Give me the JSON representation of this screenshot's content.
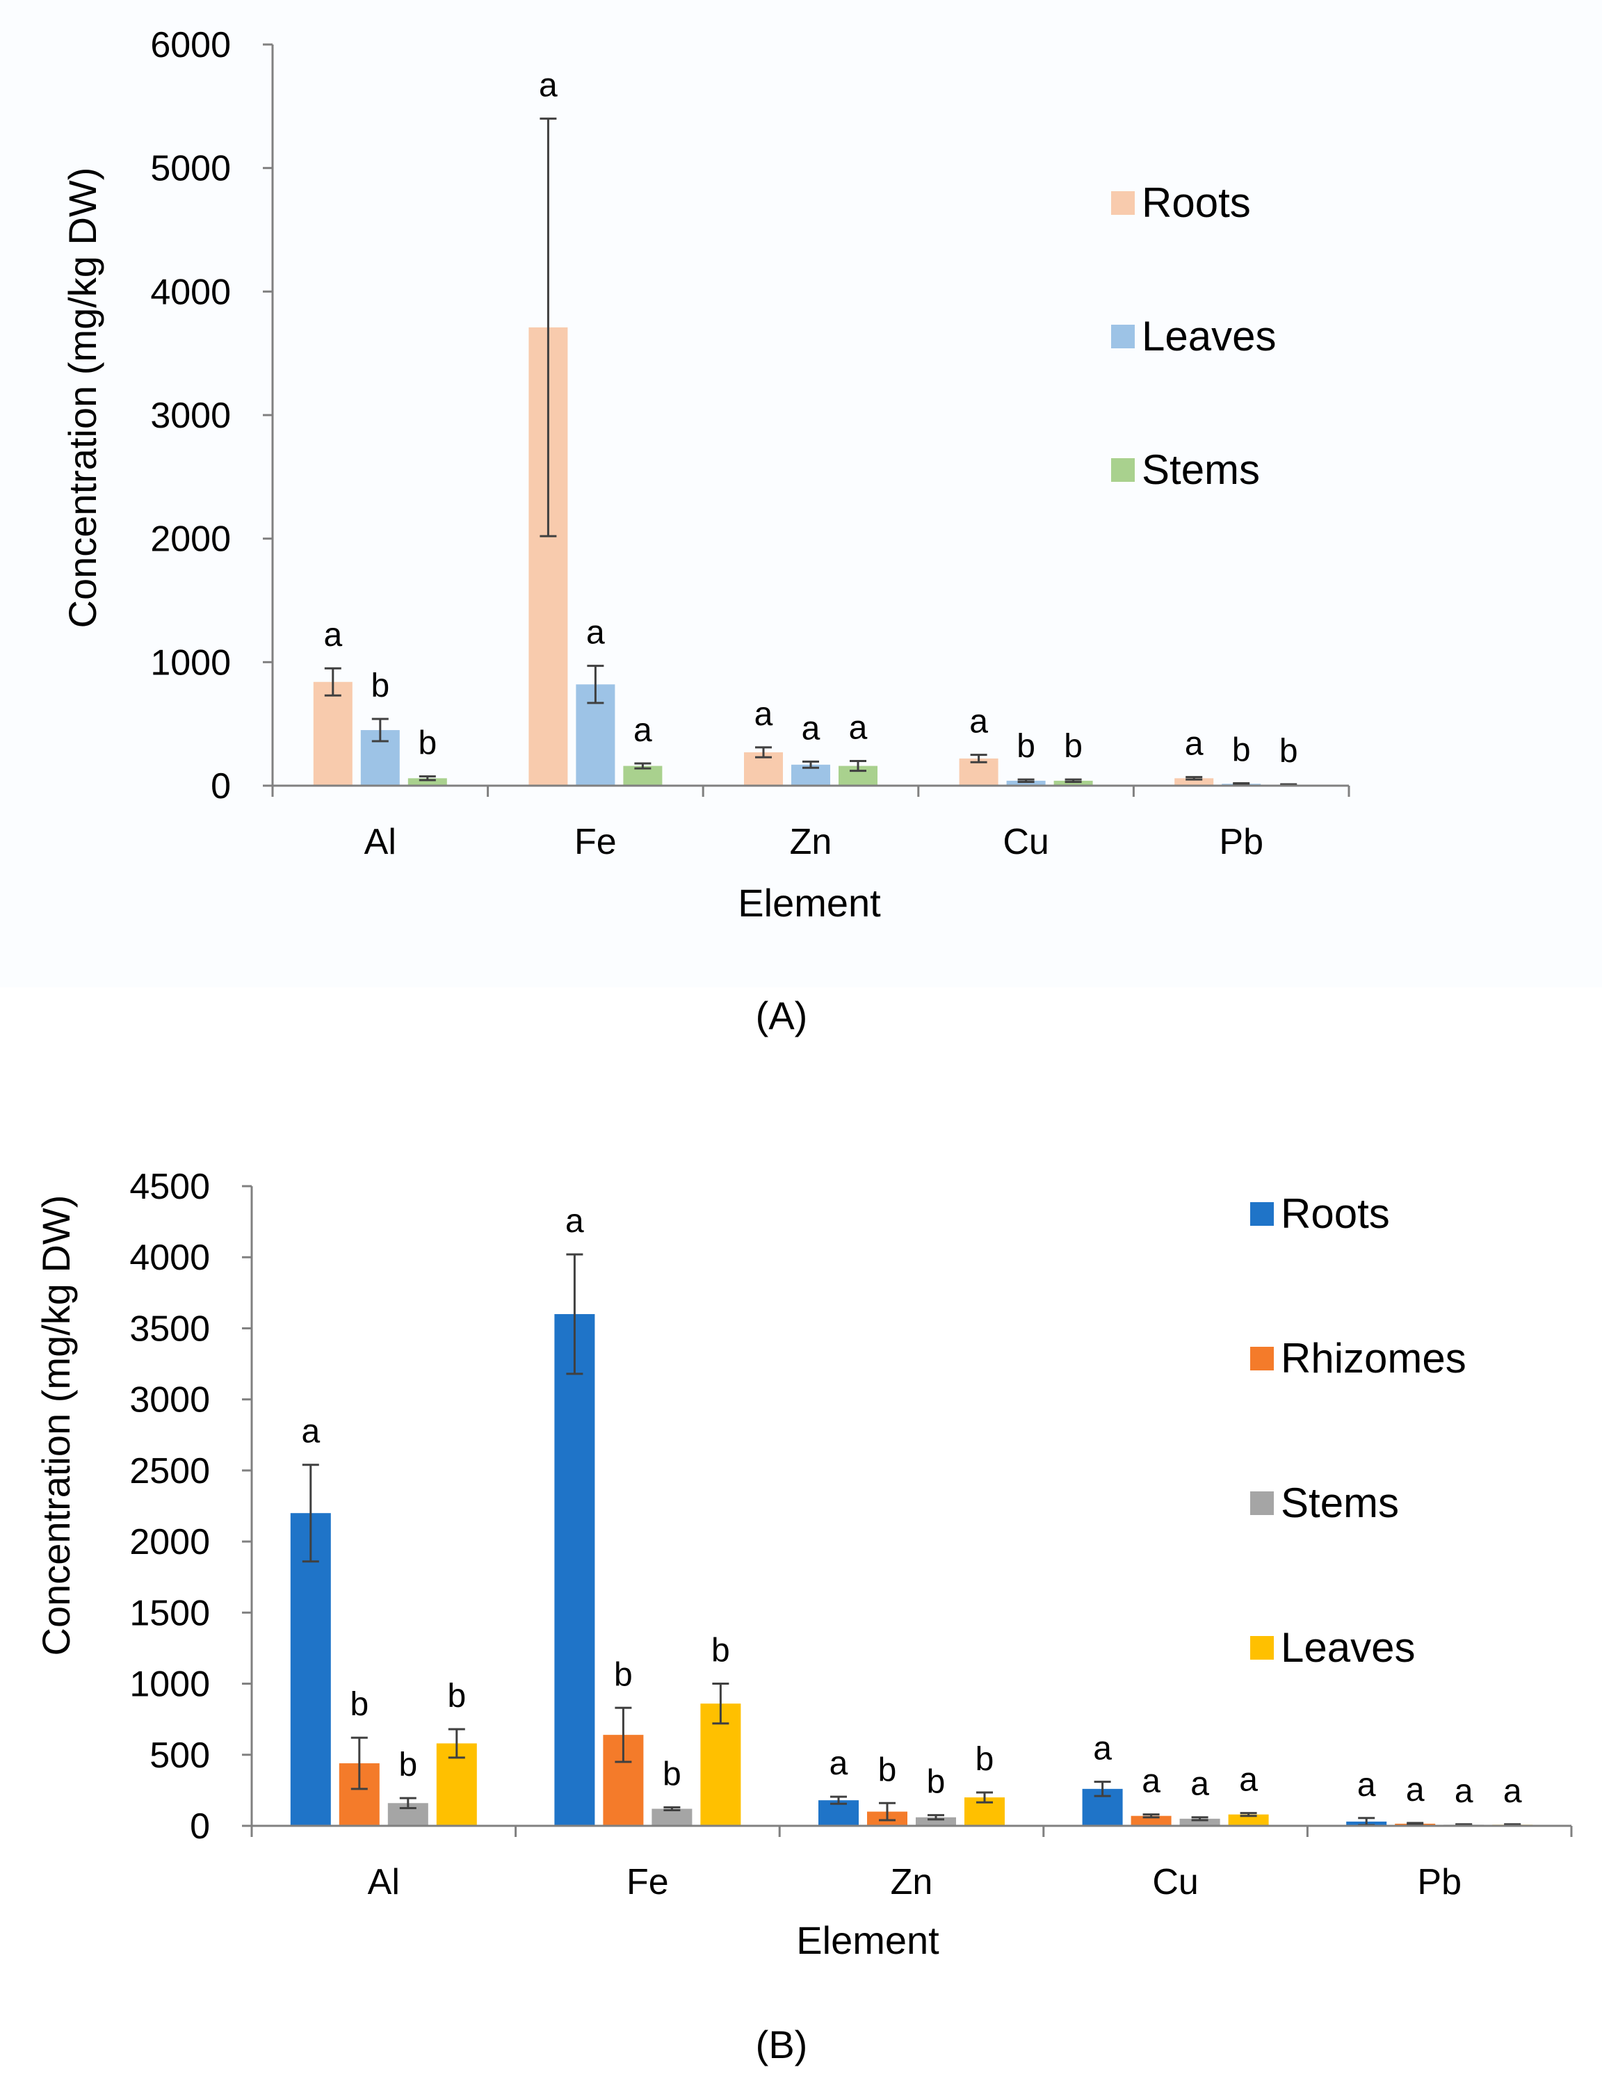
{
  "chart_data": [
    {
      "type": "bar",
      "panel_label": "(A)",
      "xlabel": "Element",
      "ylabel": "Concentration (mg/kg  DW)",
      "categories": [
        "Al",
        "Fe",
        "Zn",
        "Cu",
        "Pb"
      ],
      "ylim": [
        0,
        6000
      ],
      "yticks": [
        0,
        1000,
        2000,
        3000,
        4000,
        5000,
        6000
      ],
      "legend_position": "top-right",
      "series": [
        {
          "name": "Roots",
          "color": "#f8cbad",
          "values": [
            840,
            3710,
            270,
            220,
            60
          ],
          "errors": [
            110,
            1690,
            40,
            30,
            10
          ],
          "letters": [
            "a",
            "a",
            "a",
            "a",
            "a"
          ]
        },
        {
          "name": "Leaves",
          "color": "#9dc3e6",
          "values": [
            450,
            820,
            170,
            40,
            15
          ],
          "errors": [
            90,
            150,
            25,
            10,
            5
          ],
          "letters": [
            "b",
            "a",
            "a",
            "b",
            "b"
          ]
        },
        {
          "name": "Stems",
          "color": "#a9d18e",
          "values": [
            60,
            160,
            160,
            40,
            8
          ],
          "errors": [
            15,
            20,
            40,
            10,
            3
          ],
          "letters": [
            "b",
            "a",
            "a",
            "b",
            "b"
          ]
        }
      ]
    },
    {
      "type": "bar",
      "panel_label": "(B)",
      "xlabel": "Element",
      "ylabel": "Concentration (mg/kg DW)",
      "categories": [
        "Al",
        "Fe",
        "Zn",
        "Cu",
        "Pb"
      ],
      "ylim": [
        0,
        4500
      ],
      "yticks": [
        0,
        500,
        1000,
        1500,
        2000,
        2500,
        3000,
        3500,
        4000,
        4500
      ],
      "legend_position": "top-right",
      "series": [
        {
          "name": "Roots",
          "color": "#1f74c8",
          "values": [
            2200,
            3600,
            180,
            260,
            30
          ],
          "errors": [
            340,
            420,
            25,
            50,
            25
          ],
          "letters": [
            "a",
            "a",
            "a",
            "a",
            "a"
          ]
        },
        {
          "name": "Rhizomes",
          "color": "#f47b2a",
          "values": [
            440,
            640,
            100,
            70,
            15
          ],
          "errors": [
            180,
            190,
            60,
            10,
            5
          ],
          "letters": [
            "b",
            "b",
            "b",
            "a",
            "a"
          ]
        },
        {
          "name": "Stems",
          "color": "#a5a5a5",
          "values": [
            160,
            120,
            60,
            50,
            8
          ],
          "errors": [
            35,
            10,
            15,
            10,
            3
          ],
          "letters": [
            "b",
            "b",
            "b",
            "a",
            "a"
          ]
        },
        {
          "name": "Leaves",
          "color": "#ffc000",
          "values": [
            580,
            860,
            200,
            80,
            8
          ],
          "errors": [
            100,
            140,
            35,
            10,
            3
          ],
          "letters": [
            "b",
            "b",
            "b",
            "a",
            "a"
          ]
        }
      ]
    }
  ]
}
